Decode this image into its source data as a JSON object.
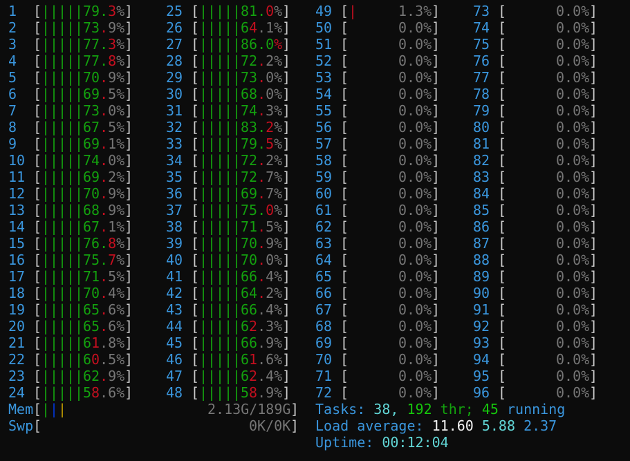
{
  "colors": {
    "background": "#0c0c0c",
    "label": "#3a96dd",
    "user": "#13a10e",
    "system": "#c50f1f",
    "text": "#767676",
    "bracket": "#cccccc",
    "mem_buffers": "#0037da",
    "mem_cache": "#c19c00"
  },
  "cpus": [
    {
      "id": "1",
      "value": "79.3%",
      "user_cells": 8,
      "system_cells": 1
    },
    {
      "id": "2",
      "value": "73.9%",
      "user_cells": 7,
      "system_cells": 1
    },
    {
      "id": "3",
      "value": "77.3%",
      "user_cells": 8,
      "system_cells": 1
    },
    {
      "id": "4",
      "value": "77.8%",
      "user_cells": 8,
      "system_cells": 1
    },
    {
      "id": "5",
      "value": "70.9%",
      "user_cells": 7,
      "system_cells": 1
    },
    {
      "id": "6",
      "value": "69.5%",
      "user_cells": 7,
      "system_cells": 1
    },
    {
      "id": "7",
      "value": "73.0%",
      "user_cells": 7,
      "system_cells": 1
    },
    {
      "id": "8",
      "value": "67.5%",
      "user_cells": 7,
      "system_cells": 1
    },
    {
      "id": "9",
      "value": "69.1%",
      "user_cells": 7,
      "system_cells": 1
    },
    {
      "id": "10",
      "value": "74.0%",
      "user_cells": 7,
      "system_cells": 1
    },
    {
      "id": "11",
      "value": "69.2%",
      "user_cells": 7,
      "system_cells": 1
    },
    {
      "id": "12",
      "value": "70.9%",
      "user_cells": 7,
      "system_cells": 1
    },
    {
      "id": "13",
      "value": "68.9%",
      "user_cells": 7,
      "system_cells": 1
    },
    {
      "id": "14",
      "value": "67.1%",
      "user_cells": 7,
      "system_cells": 1
    },
    {
      "id": "15",
      "value": "76.8%",
      "user_cells": 8,
      "system_cells": 1
    },
    {
      "id": "16",
      "value": "75.7%",
      "user_cells": 8,
      "system_cells": 1
    },
    {
      "id": "17",
      "value": "71.5%",
      "user_cells": 7,
      "system_cells": 1
    },
    {
      "id": "18",
      "value": "70.4%",
      "user_cells": 7,
      "system_cells": 1
    },
    {
      "id": "19",
      "value": "65.6%",
      "user_cells": 7,
      "system_cells": 1
    },
    {
      "id": "20",
      "value": "65.6%",
      "user_cells": 7,
      "system_cells": 1
    },
    {
      "id": "21",
      "value": "61.8%",
      "user_cells": 6,
      "system_cells": 1
    },
    {
      "id": "22",
      "value": "60.5%",
      "user_cells": 6,
      "system_cells": 1
    },
    {
      "id": "23",
      "value": "62.9%",
      "user_cells": 7,
      "system_cells": 1
    },
    {
      "id": "24",
      "value": "58.6%",
      "user_cells": 6,
      "system_cells": 1
    },
    {
      "id": "25",
      "value": "81.0%",
      "user_cells": 8,
      "system_cells": 1
    },
    {
      "id": "26",
      "value": "64.1%",
      "user_cells": 6,
      "system_cells": 1
    },
    {
      "id": "27",
      "value": "86.0%",
      "user_cells": 9,
      "system_cells": 1
    },
    {
      "id": "28",
      "value": "72.2%",
      "user_cells": 7,
      "system_cells": 1
    },
    {
      "id": "29",
      "value": "73.0%",
      "user_cells": 7,
      "system_cells": 1
    },
    {
      "id": "30",
      "value": "68.0%",
      "user_cells": 7,
      "system_cells": 1
    },
    {
      "id": "31",
      "value": "74.3%",
      "user_cells": 7,
      "system_cells": 1
    },
    {
      "id": "32",
      "value": "83.2%",
      "user_cells": 8,
      "system_cells": 1
    },
    {
      "id": "33",
      "value": "79.5%",
      "user_cells": 8,
      "system_cells": 1
    },
    {
      "id": "34",
      "value": "72.2%",
      "user_cells": 7,
      "system_cells": 1
    },
    {
      "id": "35",
      "value": "72.7%",
      "user_cells": 7,
      "system_cells": 1
    },
    {
      "id": "36",
      "value": "69.7%",
      "user_cells": 7,
      "system_cells": 1
    },
    {
      "id": "37",
      "value": "75.0%",
      "user_cells": 8,
      "system_cells": 1
    },
    {
      "id": "38",
      "value": "71.5%",
      "user_cells": 7,
      "system_cells": 1
    },
    {
      "id": "39",
      "value": "70.9%",
      "user_cells": 7,
      "system_cells": 1
    },
    {
      "id": "40",
      "value": "70.0%",
      "user_cells": 7,
      "system_cells": 1
    },
    {
      "id": "41",
      "value": "66.4%",
      "user_cells": 7,
      "system_cells": 1
    },
    {
      "id": "42",
      "value": "64.2%",
      "user_cells": 7,
      "system_cells": 1
    },
    {
      "id": "43",
      "value": "66.4%",
      "user_cells": 7,
      "system_cells": 0
    },
    {
      "id": "44",
      "value": "62.3%",
      "user_cells": 6,
      "system_cells": 1
    },
    {
      "id": "45",
      "value": "66.9%",
      "user_cells": 7,
      "system_cells": 0
    },
    {
      "id": "46",
      "value": "61.6%",
      "user_cells": 6,
      "system_cells": 1
    },
    {
      "id": "47",
      "value": "62.4%",
      "user_cells": 6,
      "system_cells": 1
    },
    {
      "id": "48",
      "value": "58.9%",
      "user_cells": 6,
      "system_cells": 1
    },
    {
      "id": "49",
      "value": "1.3%",
      "user_cells": 0,
      "system_cells": 1
    },
    {
      "id": "50",
      "value": "0.0%",
      "user_cells": 0,
      "system_cells": 0
    },
    {
      "id": "51",
      "value": "0.0%",
      "user_cells": 0,
      "system_cells": 0
    },
    {
      "id": "52",
      "value": "0.0%",
      "user_cells": 0,
      "system_cells": 0
    },
    {
      "id": "53",
      "value": "0.0%",
      "user_cells": 0,
      "system_cells": 0
    },
    {
      "id": "54",
      "value": "0.0%",
      "user_cells": 0,
      "system_cells": 0
    },
    {
      "id": "55",
      "value": "0.0%",
      "user_cells": 0,
      "system_cells": 0
    },
    {
      "id": "56",
      "value": "0.0%",
      "user_cells": 0,
      "system_cells": 0
    },
    {
      "id": "57",
      "value": "0.0%",
      "user_cells": 0,
      "system_cells": 0
    },
    {
      "id": "58",
      "value": "0.0%",
      "user_cells": 0,
      "system_cells": 0
    },
    {
      "id": "59",
      "value": "0.0%",
      "user_cells": 0,
      "system_cells": 0
    },
    {
      "id": "60",
      "value": "0.0%",
      "user_cells": 0,
      "system_cells": 0
    },
    {
      "id": "61",
      "value": "0.0%",
      "user_cells": 0,
      "system_cells": 0
    },
    {
      "id": "62",
      "value": "0.0%",
      "user_cells": 0,
      "system_cells": 0
    },
    {
      "id": "63",
      "value": "0.0%",
      "user_cells": 0,
      "system_cells": 0
    },
    {
      "id": "64",
      "value": "0.0%",
      "user_cells": 0,
      "system_cells": 0
    },
    {
      "id": "65",
      "value": "0.0%",
      "user_cells": 0,
      "system_cells": 0
    },
    {
      "id": "66",
      "value": "0.0%",
      "user_cells": 0,
      "system_cells": 0
    },
    {
      "id": "67",
      "value": "0.0%",
      "user_cells": 0,
      "system_cells": 0
    },
    {
      "id": "68",
      "value": "0.0%",
      "user_cells": 0,
      "system_cells": 0
    },
    {
      "id": "69",
      "value": "0.0%",
      "user_cells": 0,
      "system_cells": 0
    },
    {
      "id": "70",
      "value": "0.0%",
      "user_cells": 0,
      "system_cells": 0
    },
    {
      "id": "71",
      "value": "0.0%",
      "user_cells": 0,
      "system_cells": 0
    },
    {
      "id": "72",
      "value": "0.0%",
      "user_cells": 0,
      "system_cells": 0
    },
    {
      "id": "73",
      "value": "0.0%",
      "user_cells": 0,
      "system_cells": 0
    },
    {
      "id": "74",
      "value": "0.0%",
      "user_cells": 0,
      "system_cells": 0
    },
    {
      "id": "75",
      "value": "0.0%",
      "user_cells": 0,
      "system_cells": 0
    },
    {
      "id": "76",
      "value": "0.0%",
      "user_cells": 0,
      "system_cells": 0
    },
    {
      "id": "77",
      "value": "0.0%",
      "user_cells": 0,
      "system_cells": 0
    },
    {
      "id": "78",
      "value": "0.0%",
      "user_cells": 0,
      "system_cells": 0
    },
    {
      "id": "79",
      "value": "0.0%",
      "user_cells": 0,
      "system_cells": 0
    },
    {
      "id": "80",
      "value": "0.0%",
      "user_cells": 0,
      "system_cells": 0
    },
    {
      "id": "81",
      "value": "0.0%",
      "user_cells": 0,
      "system_cells": 0
    },
    {
      "id": "82",
      "value": "0.0%",
      "user_cells": 0,
      "system_cells": 0
    },
    {
      "id": "83",
      "value": "0.0%",
      "user_cells": 0,
      "system_cells": 0
    },
    {
      "id": "84",
      "value": "0.0%",
      "user_cells": 0,
      "system_cells": 0
    },
    {
      "id": "85",
      "value": "0.0%",
      "user_cells": 0,
      "system_cells": 0
    },
    {
      "id": "86",
      "value": "0.0%",
      "user_cells": 0,
      "system_cells": 0
    },
    {
      "id": "87",
      "value": "0.0%",
      "user_cells": 0,
      "system_cells": 0
    },
    {
      "id": "88",
      "value": "0.0%",
      "user_cells": 0,
      "system_cells": 0
    },
    {
      "id": "89",
      "value": "0.0%",
      "user_cells": 0,
      "system_cells": 0
    },
    {
      "id": "90",
      "value": "0.0%",
      "user_cells": 0,
      "system_cells": 0
    },
    {
      "id": "91",
      "value": "0.0%",
      "user_cells": 0,
      "system_cells": 0
    },
    {
      "id": "92",
      "value": "0.0%",
      "user_cells": 0,
      "system_cells": 0
    },
    {
      "id": "93",
      "value": "0.0%",
      "user_cells": 0,
      "system_cells": 0
    },
    {
      "id": "94",
      "value": "0.0%",
      "user_cells": 0,
      "system_cells": 0
    },
    {
      "id": "95",
      "value": "0.0%",
      "user_cells": 0,
      "system_cells": 0
    },
    {
      "id": "96",
      "value": "0.0%",
      "user_cells": 0,
      "system_cells": 0
    }
  ],
  "mem": {
    "label": "Mem",
    "value": "2.13G/189G",
    "used_cells": 1,
    "buffers_cells": 1,
    "cache_cells": 1
  },
  "swap": {
    "label": "Swp",
    "value": "0K/0K",
    "used_cells": 0
  },
  "tasks": {
    "label": "Tasks: ",
    "count": "38",
    "sep1": ", ",
    "threads": "192",
    "threads_label": " thr; ",
    "running": "45",
    "running_label": " running"
  },
  "load": {
    "label": "Load average: ",
    "one": "11.60",
    "five": "5.88",
    "fifteen": "2.37"
  },
  "uptime": {
    "label": "Uptime: ",
    "value": "00:12:04"
  }
}
